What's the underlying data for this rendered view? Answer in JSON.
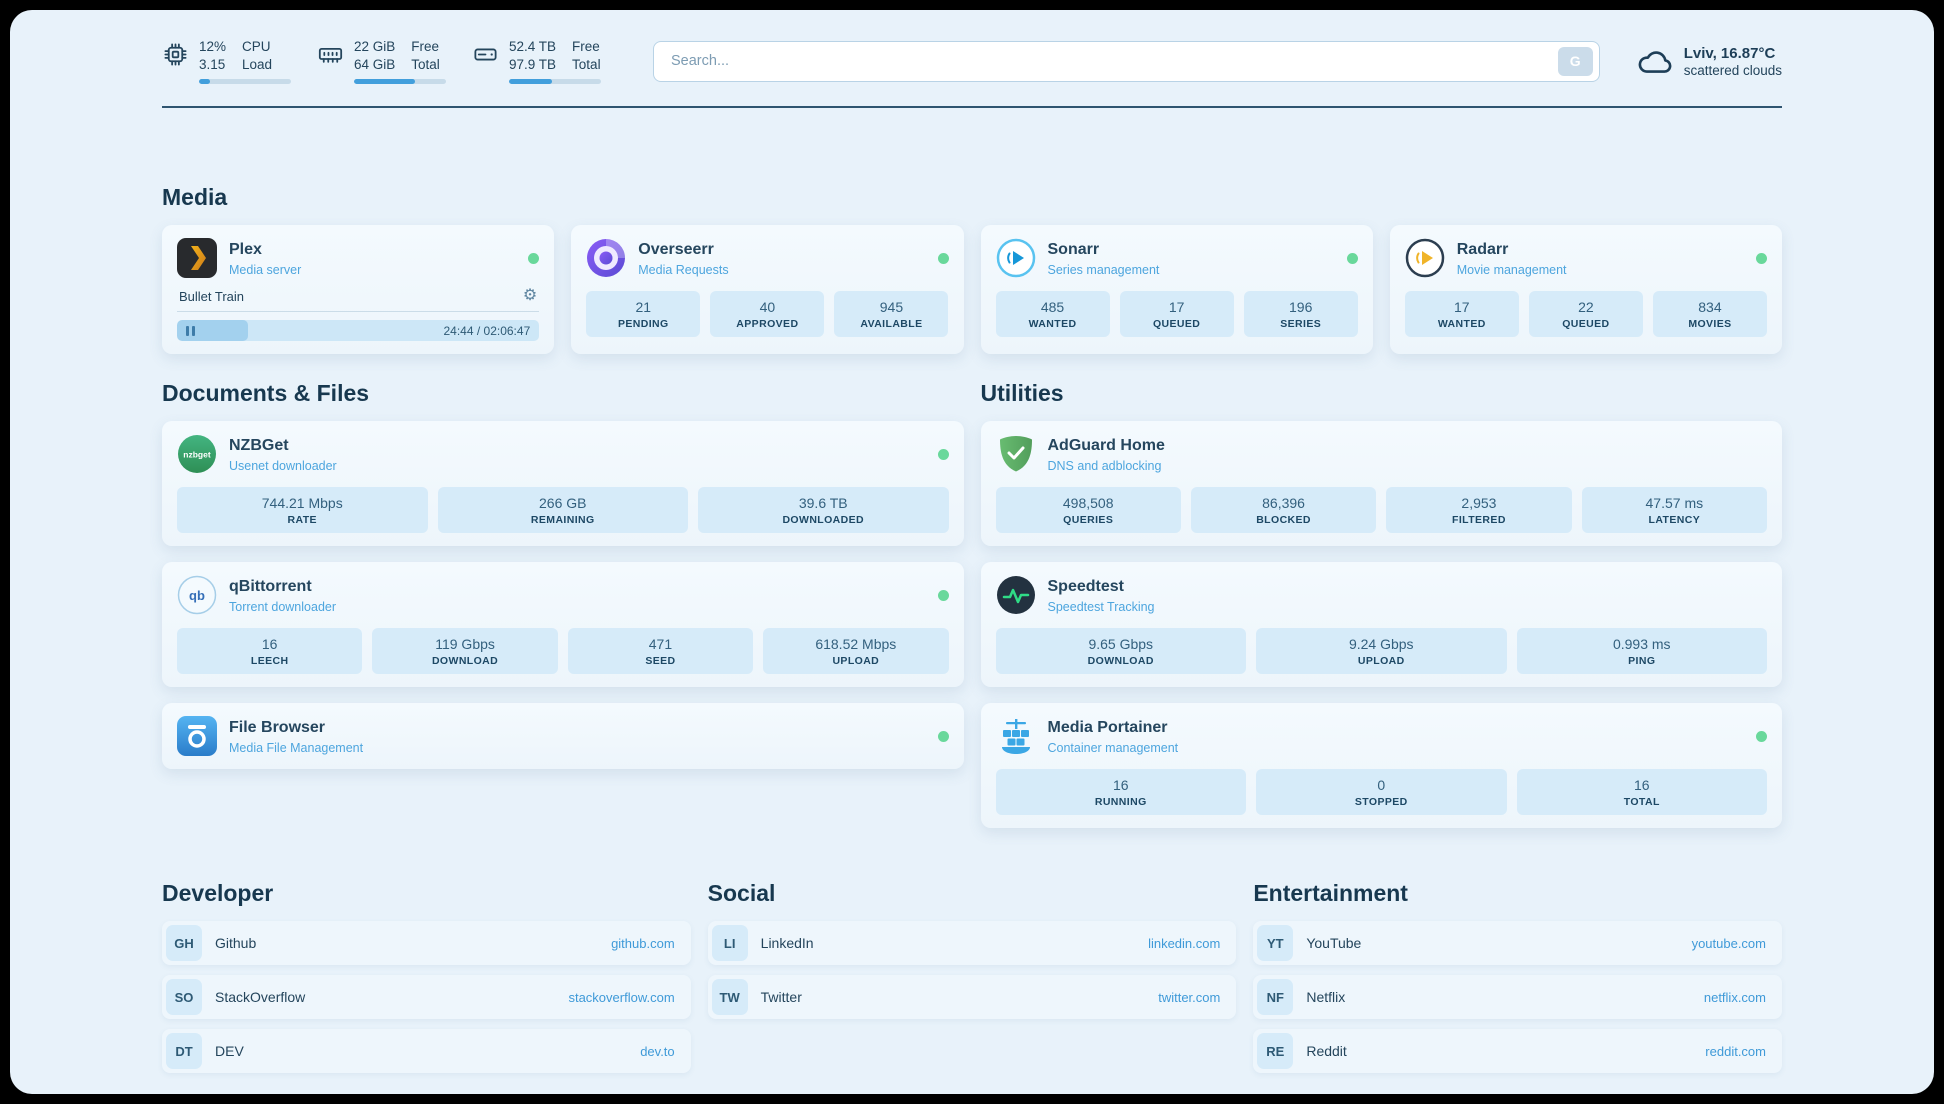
{
  "colors": {
    "status_online": "#69d89b",
    "accent_blue": "#3f9ad8",
    "page_background": "#e8f2fa"
  },
  "header": {
    "cpu": {
      "value_top": "12%",
      "value_bottom": "3.15",
      "label_top": "CPU",
      "label_bottom": "Load",
      "progress": 12
    },
    "ram": {
      "value_top": "22 GiB",
      "value_bottom": "64 GiB",
      "label_top": "Free",
      "label_bottom": "Total",
      "progress": 66
    },
    "disk": {
      "value_top": "52.4 TB",
      "value_bottom": "97.9 TB",
      "label_top": "Free",
      "label_bottom": "Total",
      "progress": 47
    },
    "search": {
      "placeholder": "Search...",
      "button_label": "G"
    },
    "weather": {
      "location": "Lviv, 16.87°C",
      "condition": "scattered clouds"
    }
  },
  "sections": {
    "media": {
      "title": "Media",
      "cards": [
        {
          "name": "Plex",
          "subtitle": "Media server",
          "player": {
            "track": "Bullet Train",
            "time": "24:44 / 02:06:47",
            "progress": 19.5
          }
        },
        {
          "name": "Overseerr",
          "subtitle": "Media Requests",
          "stats": [
            {
              "value": "21",
              "label": "PENDING"
            },
            {
              "value": "40",
              "label": "APPROVED"
            },
            {
              "value": "945",
              "label": "AVAILABLE"
            }
          ]
        },
        {
          "name": "Sonarr",
          "subtitle": "Series management",
          "stats": [
            {
              "value": "485",
              "label": "WANTED"
            },
            {
              "value": "17",
              "label": "QUEUED"
            },
            {
              "value": "196",
              "label": "SERIES"
            }
          ]
        },
        {
          "name": "Radarr",
          "subtitle": "Movie management",
          "stats": [
            {
              "value": "17",
              "label": "WANTED"
            },
            {
              "value": "22",
              "label": "QUEUED"
            },
            {
              "value": "834",
              "label": "MOVIES"
            }
          ]
        }
      ]
    },
    "documents": {
      "title": "Documents & Files",
      "cards": [
        {
          "name": "NZBGet",
          "subtitle": "Usenet downloader",
          "stats": [
            {
              "value": "744.21 Mbps",
              "label": "RATE"
            },
            {
              "value": "266 GB",
              "label": "REMAINING"
            },
            {
              "value": "39.6 TB",
              "label": "DOWNLOADED"
            }
          ]
        },
        {
          "name": "qBittorrent",
          "subtitle": "Torrent downloader",
          "stats": [
            {
              "value": "16",
              "label": "LEECH"
            },
            {
              "value": "119 Gbps",
              "label": "DOWNLOAD"
            },
            {
              "value": "471",
              "label": "SEED"
            },
            {
              "value": "618.52 Mbps",
              "label": "UPLOAD"
            }
          ]
        },
        {
          "name": "File Browser",
          "subtitle": "Media File Management"
        }
      ]
    },
    "utilities": {
      "title": "Utilities",
      "cards": [
        {
          "name": "AdGuard Home",
          "subtitle": "DNS and adblocking",
          "stats": [
            {
              "value": "498,508",
              "label": "QUERIES"
            },
            {
              "value": "86,396",
              "label": "BLOCKED"
            },
            {
              "value": "2,953",
              "label": "FILTERED"
            },
            {
              "value": "47.57 ms",
              "label": "LATENCY"
            }
          ]
        },
        {
          "name": "Speedtest",
          "subtitle": "Speedtest Tracking",
          "stats": [
            {
              "value": "9.65 Gbps",
              "label": "DOWNLOAD"
            },
            {
              "value": "9.24 Gbps",
              "label": "UPLOAD"
            },
            {
              "value": "0.993 ms",
              "label": "PING"
            }
          ]
        },
        {
          "name": "Media Portainer",
          "subtitle": "Container management",
          "stats": [
            {
              "value": "16",
              "label": "RUNNING"
            },
            {
              "value": "0",
              "label": "STOPPED"
            },
            {
              "value": "16",
              "label": "TOTAL"
            }
          ]
        }
      ]
    }
  },
  "bookmarks": [
    {
      "title": "Developer",
      "items": [
        {
          "abbr": "GH",
          "name": "Github",
          "url": "github.com"
        },
        {
          "abbr": "SO",
          "name": "StackOverflow",
          "url": "stackoverflow.com"
        },
        {
          "abbr": "DT",
          "name": "DEV",
          "url": "dev.to"
        }
      ]
    },
    {
      "title": "Social",
      "items": [
        {
          "abbr": "LI",
          "name": "LinkedIn",
          "url": "linkedin.com"
        },
        {
          "abbr": "TW",
          "name": "Twitter",
          "url": "twitter.com"
        }
      ]
    },
    {
      "title": "Entertainment",
      "items": [
        {
          "abbr": "YT",
          "name": "YouTube",
          "url": "youtube.com"
        },
        {
          "abbr": "NF",
          "name": "Netflix",
          "url": "netflix.com"
        },
        {
          "abbr": "RE",
          "name": "Reddit",
          "url": "reddit.com"
        }
      ]
    }
  ]
}
